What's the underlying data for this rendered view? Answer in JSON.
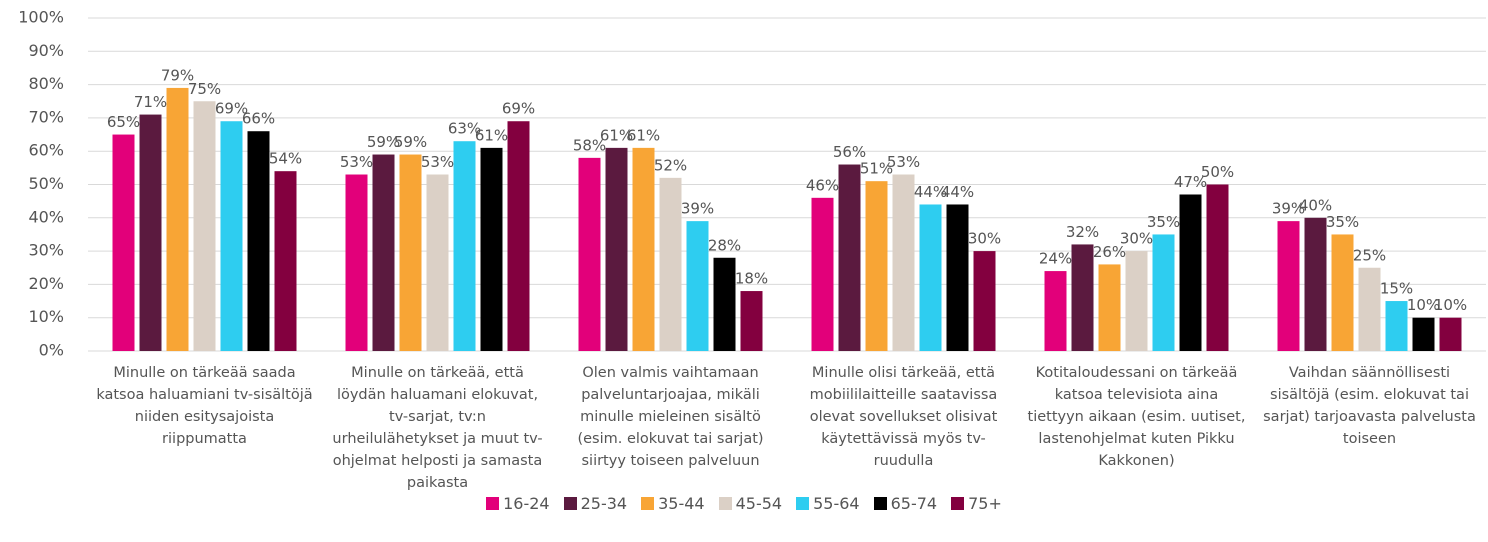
{
  "chart_data": {
    "type": "bar",
    "categories": [
      "Minulle on tärkeää saada katsoa haluamiani tv-sisältöjä niiden esitysajoista riippumatta",
      "Minulle on tärkeää, että löydän haluamani elokuvat, tv-sarjat, tv:n urheilulähetykset ja muut tv-ohjelmat helposti ja samasta paikasta",
      "Olen valmis vaihtamaan palveluntarjoajaa, mikäli minulle mieleinen sisältö (esim. elokuvat tai sarjat) siirtyy toiseen palveluun",
      "Minulle olisi tärkeää, että mobiililaitteille saatavissa olevat sovellukset olisivat käytettävissä myös tv-ruudulla",
      "Kotitaloudessani on tärkeää katsoa televisiota aina tiettyyn aikaan (esim. uutiset, lastenohjelmat kuten Pikku Kakkonen)",
      "Vaihdan säännöllisesti sisältöjä (esim. elokuvat tai sarjat) tarjoavasta palvelusta toiseen"
    ],
    "series": [
      {
        "name": "16-24",
        "color": "#e2007a",
        "values": [
          65,
          53,
          58,
          46,
          24,
          39
        ],
        "value_labels": [
          "65%",
          "53%",
          "58%",
          "46%",
          "24%",
          "39%"
        ]
      },
      {
        "name": "25-34",
        "color": "#5b1a3f",
        "values": [
          71,
          59,
          61,
          56,
          32,
          40
        ],
        "value_labels": [
          "71%",
          "59%",
          "61%",
          "56%",
          "32%",
          "40%"
        ]
      },
      {
        "name": "35-44",
        "color": "#f8a535",
        "values": [
          79,
          59,
          61,
          51,
          26,
          35
        ],
        "value_labels": [
          "79%",
          "59%",
          "61%",
          "51%",
          "26%",
          "35%"
        ]
      },
      {
        "name": "45-54",
        "color": "#dbd0c6",
        "values": [
          75,
          53,
          52,
          53,
          30,
          25
        ],
        "value_labels": [
          "75%",
          "53%",
          "52%",
          "53%",
          "30%",
          "25%"
        ]
      },
      {
        "name": "55-64",
        "color": "#2ecdf0",
        "values": [
          69,
          63,
          39,
          44,
          35,
          15
        ],
        "value_labels": [
          "69%",
          "63%",
          "39%",
          "44%",
          "35%",
          "15%"
        ]
      },
      {
        "name": "65-74",
        "color": "#000000",
        "values": [
          66,
          61,
          28,
          44,
          47,
          10
        ],
        "value_labels": [
          "66%",
          "61%",
          "28%",
          "44%",
          "47%",
          "10%"
        ]
      },
      {
        "name": "75+",
        "color": "#83003f",
        "values": [
          54,
          69,
          18,
          30,
          50,
          10
        ],
        "value_labels": [
          "54%",
          "69%",
          "18%",
          "30%",
          "50%",
          "10%"
        ]
      }
    ],
    "ylim": [
      0,
      100
    ],
    "yticks": [
      {
        "value": 0,
        "label": "0%"
      },
      {
        "value": 10,
        "label": "10%"
      },
      {
        "value": 20,
        "label": "20%"
      },
      {
        "value": 30,
        "label": "30%"
      },
      {
        "value": 40,
        "label": "40%"
      },
      {
        "value": 50,
        "label": "50%"
      },
      {
        "value": 60,
        "label": "60%"
      },
      {
        "value": 70,
        "label": "70%"
      },
      {
        "value": 80,
        "label": "80%"
      },
      {
        "value": 90,
        "label": "90%"
      },
      {
        "value": 100,
        "label": "100%"
      }
    ],
    "grid": true,
    "legend": "bottom"
  }
}
